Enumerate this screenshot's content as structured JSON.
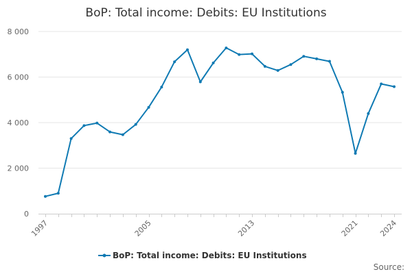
{
  "chart_data": {
    "type": "line",
    "title": "BoP: Total income: Debits: EU Institutions",
    "xlabel": "",
    "ylabel": "",
    "x": [
      1997,
      1998,
      1999,
      2000,
      2001,
      2002,
      2003,
      2004,
      2005,
      2006,
      2007,
      2008,
      2009,
      2010,
      2011,
      2012,
      2013,
      2014,
      2015,
      2016,
      2017,
      2018,
      2019,
      2020,
      2021,
      2022,
      2023,
      2024
    ],
    "xticks": [
      "1997",
      "2005",
      "2013",
      "2021",
      "2024"
    ],
    "xtick_values": [
      1997,
      2005,
      2013,
      2021,
      2024
    ],
    "yticks": [
      "0",
      "2 000",
      "4 000",
      "6 000",
      "8 000"
    ],
    "ytick_values": [
      0,
      2000,
      4000,
      6000,
      8000
    ],
    "ylim": [
      0,
      8000
    ],
    "xlim": [
      1997,
      2024
    ],
    "grid": "horizontal",
    "legend_position": "bottom",
    "series": [
      {
        "name": "BoP: Total income: Debits: EU Institutions",
        "color": "#0f7ab3",
        "values": [
          760,
          900,
          3300,
          3870,
          3980,
          3590,
          3470,
          3920,
          4670,
          5560,
          6670,
          7200,
          5790,
          6620,
          7280,
          6990,
          7020,
          6470,
          6290,
          6550,
          6910,
          6800,
          6690,
          5330,
          2650,
          4400,
          5700,
          5580
        ]
      }
    ],
    "source_label": "Source:"
  }
}
